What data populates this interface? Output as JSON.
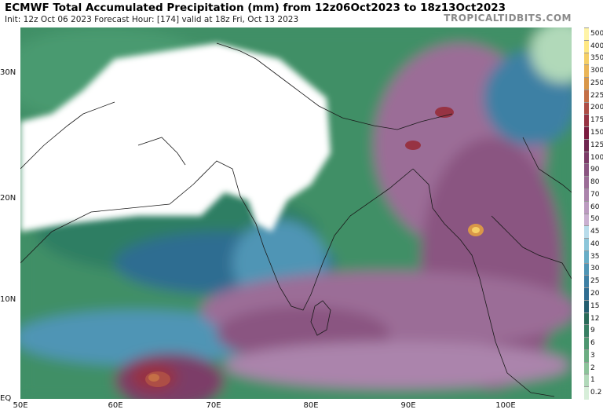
{
  "title": "ECMWF Total Accumulated Precipitation (mm) from 12z06Oct2023 to 18z13Oct2023",
  "subtitle": "Init: 12z Oct 06 2023   Forecast Hour: [174]   valid at 18z Fri, Oct 13 2023",
  "credit": "TROPICALTIDBITS.COM",
  "axes": {
    "lat_labels": [
      "30N",
      "20N",
      "10N",
      "EQ"
    ],
    "lon_labels": [
      "50E",
      "60E",
      "70E",
      "80E",
      "90E",
      "100E"
    ]
  },
  "legend": {
    "labels": [
      "500",
      "400",
      "350",
      "300",
      "250",
      "225",
      "200",
      "175",
      "150",
      "125",
      "100",
      "90",
      "80",
      "70",
      "60",
      "50",
      "45",
      "40",
      "35",
      "30",
      "25",
      "20",
      "15",
      "12",
      "9",
      "6",
      "3",
      "2",
      "1",
      "0.2"
    ],
    "colors": [
      "#fff4a8",
      "#ffe883",
      "#f5cf67",
      "#eab557",
      "#d99748",
      "#c46f46",
      "#ad4e46",
      "#973343",
      "#7b1c40",
      "#6f2750",
      "#7c3c68",
      "#8a5581",
      "#9b6d97",
      "#ab84ac",
      "#bb9bc0",
      "#cab0d1",
      "#b8dceb",
      "#8cc6da",
      "#68adc6",
      "#4f95b5",
      "#3e80a4",
      "#2f6d91",
      "#245e6f",
      "#2a6b59",
      "#387f63",
      "#4e9670",
      "#6cad82",
      "#8cc39a",
      "#b1d9b9",
      "#d7eed9"
    ]
  }
}
